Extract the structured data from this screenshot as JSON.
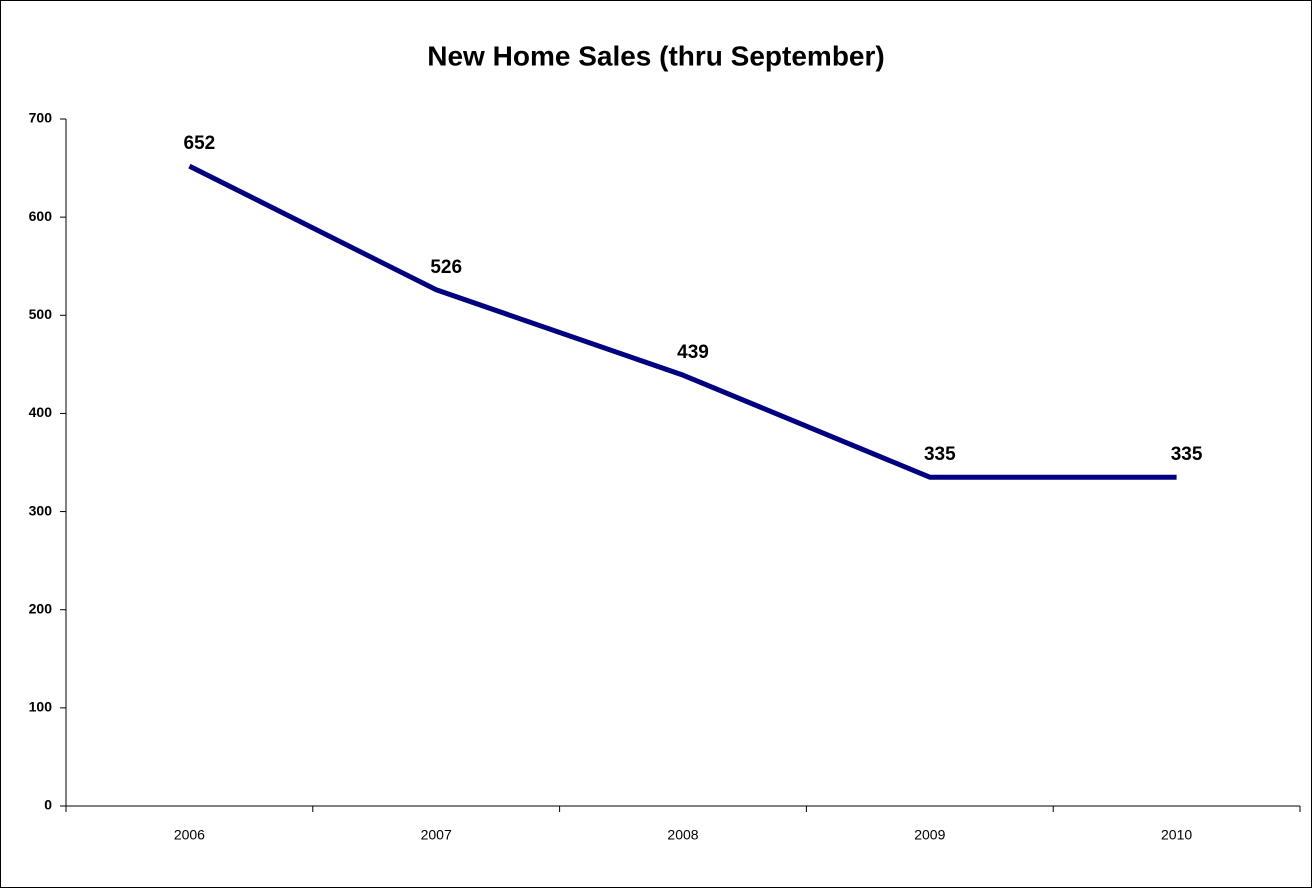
{
  "chart_data": {
    "type": "line",
    "title": "New Home Sales (thru September)",
    "categories": [
      "2006",
      "2007",
      "2008",
      "2009",
      "2010"
    ],
    "values": [
      652,
      526,
      439,
      335,
      335
    ],
    "color": "#000080",
    "ylim": [
      0,
      700
    ],
    "yticks": [
      0,
      100,
      200,
      300,
      400,
      500,
      600,
      700
    ],
    "grid": false
  }
}
